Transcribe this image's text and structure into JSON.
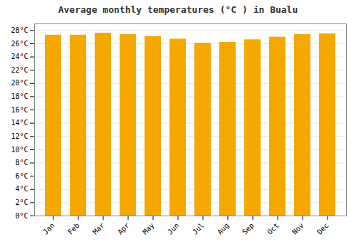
{
  "chart_data": {
    "type": "bar",
    "title": "Average monthly temperatures (°C ) in Bualu",
    "categories": [
      "Jan",
      "Feb",
      "Mar",
      "Apr",
      "May",
      "Jun",
      "Jul",
      "Aug",
      "Sep",
      "Oct",
      "Nov",
      "Dec"
    ],
    "values": [
      27.3,
      27.3,
      27.6,
      27.4,
      27.1,
      26.7,
      26.1,
      26.2,
      26.6,
      27.0,
      27.4,
      27.5
    ],
    "color": "#F5A800",
    "ylim": [
      0,
      29
    ],
    "yticks": [
      {
        "value": 0,
        "label": "0°C"
      },
      {
        "value": 2,
        "label": "2°C"
      },
      {
        "value": 4,
        "label": "4°C"
      },
      {
        "value": 6,
        "label": "6°C"
      },
      {
        "value": 8,
        "label": "8°C"
      },
      {
        "value": 10,
        "label": "10°C"
      },
      {
        "value": 12,
        "label": "12°C"
      },
      {
        "value": 14,
        "label": "14°C"
      },
      {
        "value": 16,
        "label": "16°C"
      },
      {
        "value": 18,
        "label": "18°C"
      },
      {
        "value": 20,
        "label": "20°C"
      },
      {
        "value": 22,
        "label": "22°C"
      },
      {
        "value": 24,
        "label": "24°C"
      },
      {
        "value": 26,
        "label": "26°C"
      },
      {
        "value": 28,
        "label": "28°C"
      }
    ],
    "grid": true
  }
}
